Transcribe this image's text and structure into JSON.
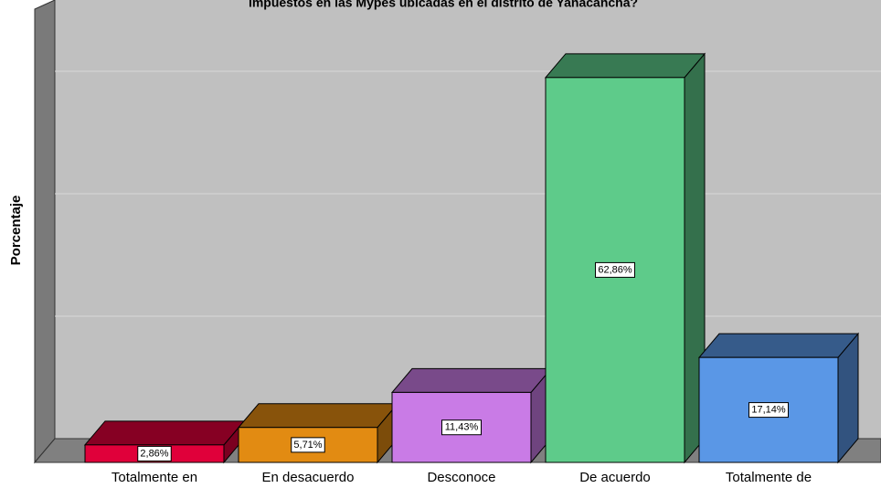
{
  "chart_data": {
    "type": "bar3d",
    "title": "impuestos en las Mypes ubicadas en el distrito de Yanacancha?",
    "y_label": "Porcentaje",
    "categories": [
      "Totalmente en",
      "En desacuerdo",
      "Desconoce",
      "De acuerdo",
      "Totalmente de"
    ],
    "values": [
      2.86,
      5.71,
      11.43,
      62.86,
      17.14
    ],
    "value_labels": [
      "2,86%",
      "5,71%",
      "11,43%",
      "62,86%",
      "17,14%"
    ],
    "colors": [
      "#e0003a",
      "#e28b12",
      "#c97be6",
      "#5ecb8a",
      "#5a97e6"
    ],
    "ylim": [
      0,
      70
    ],
    "yticks": [
      0,
      20,
      40,
      60
    ],
    "grid": true
  }
}
